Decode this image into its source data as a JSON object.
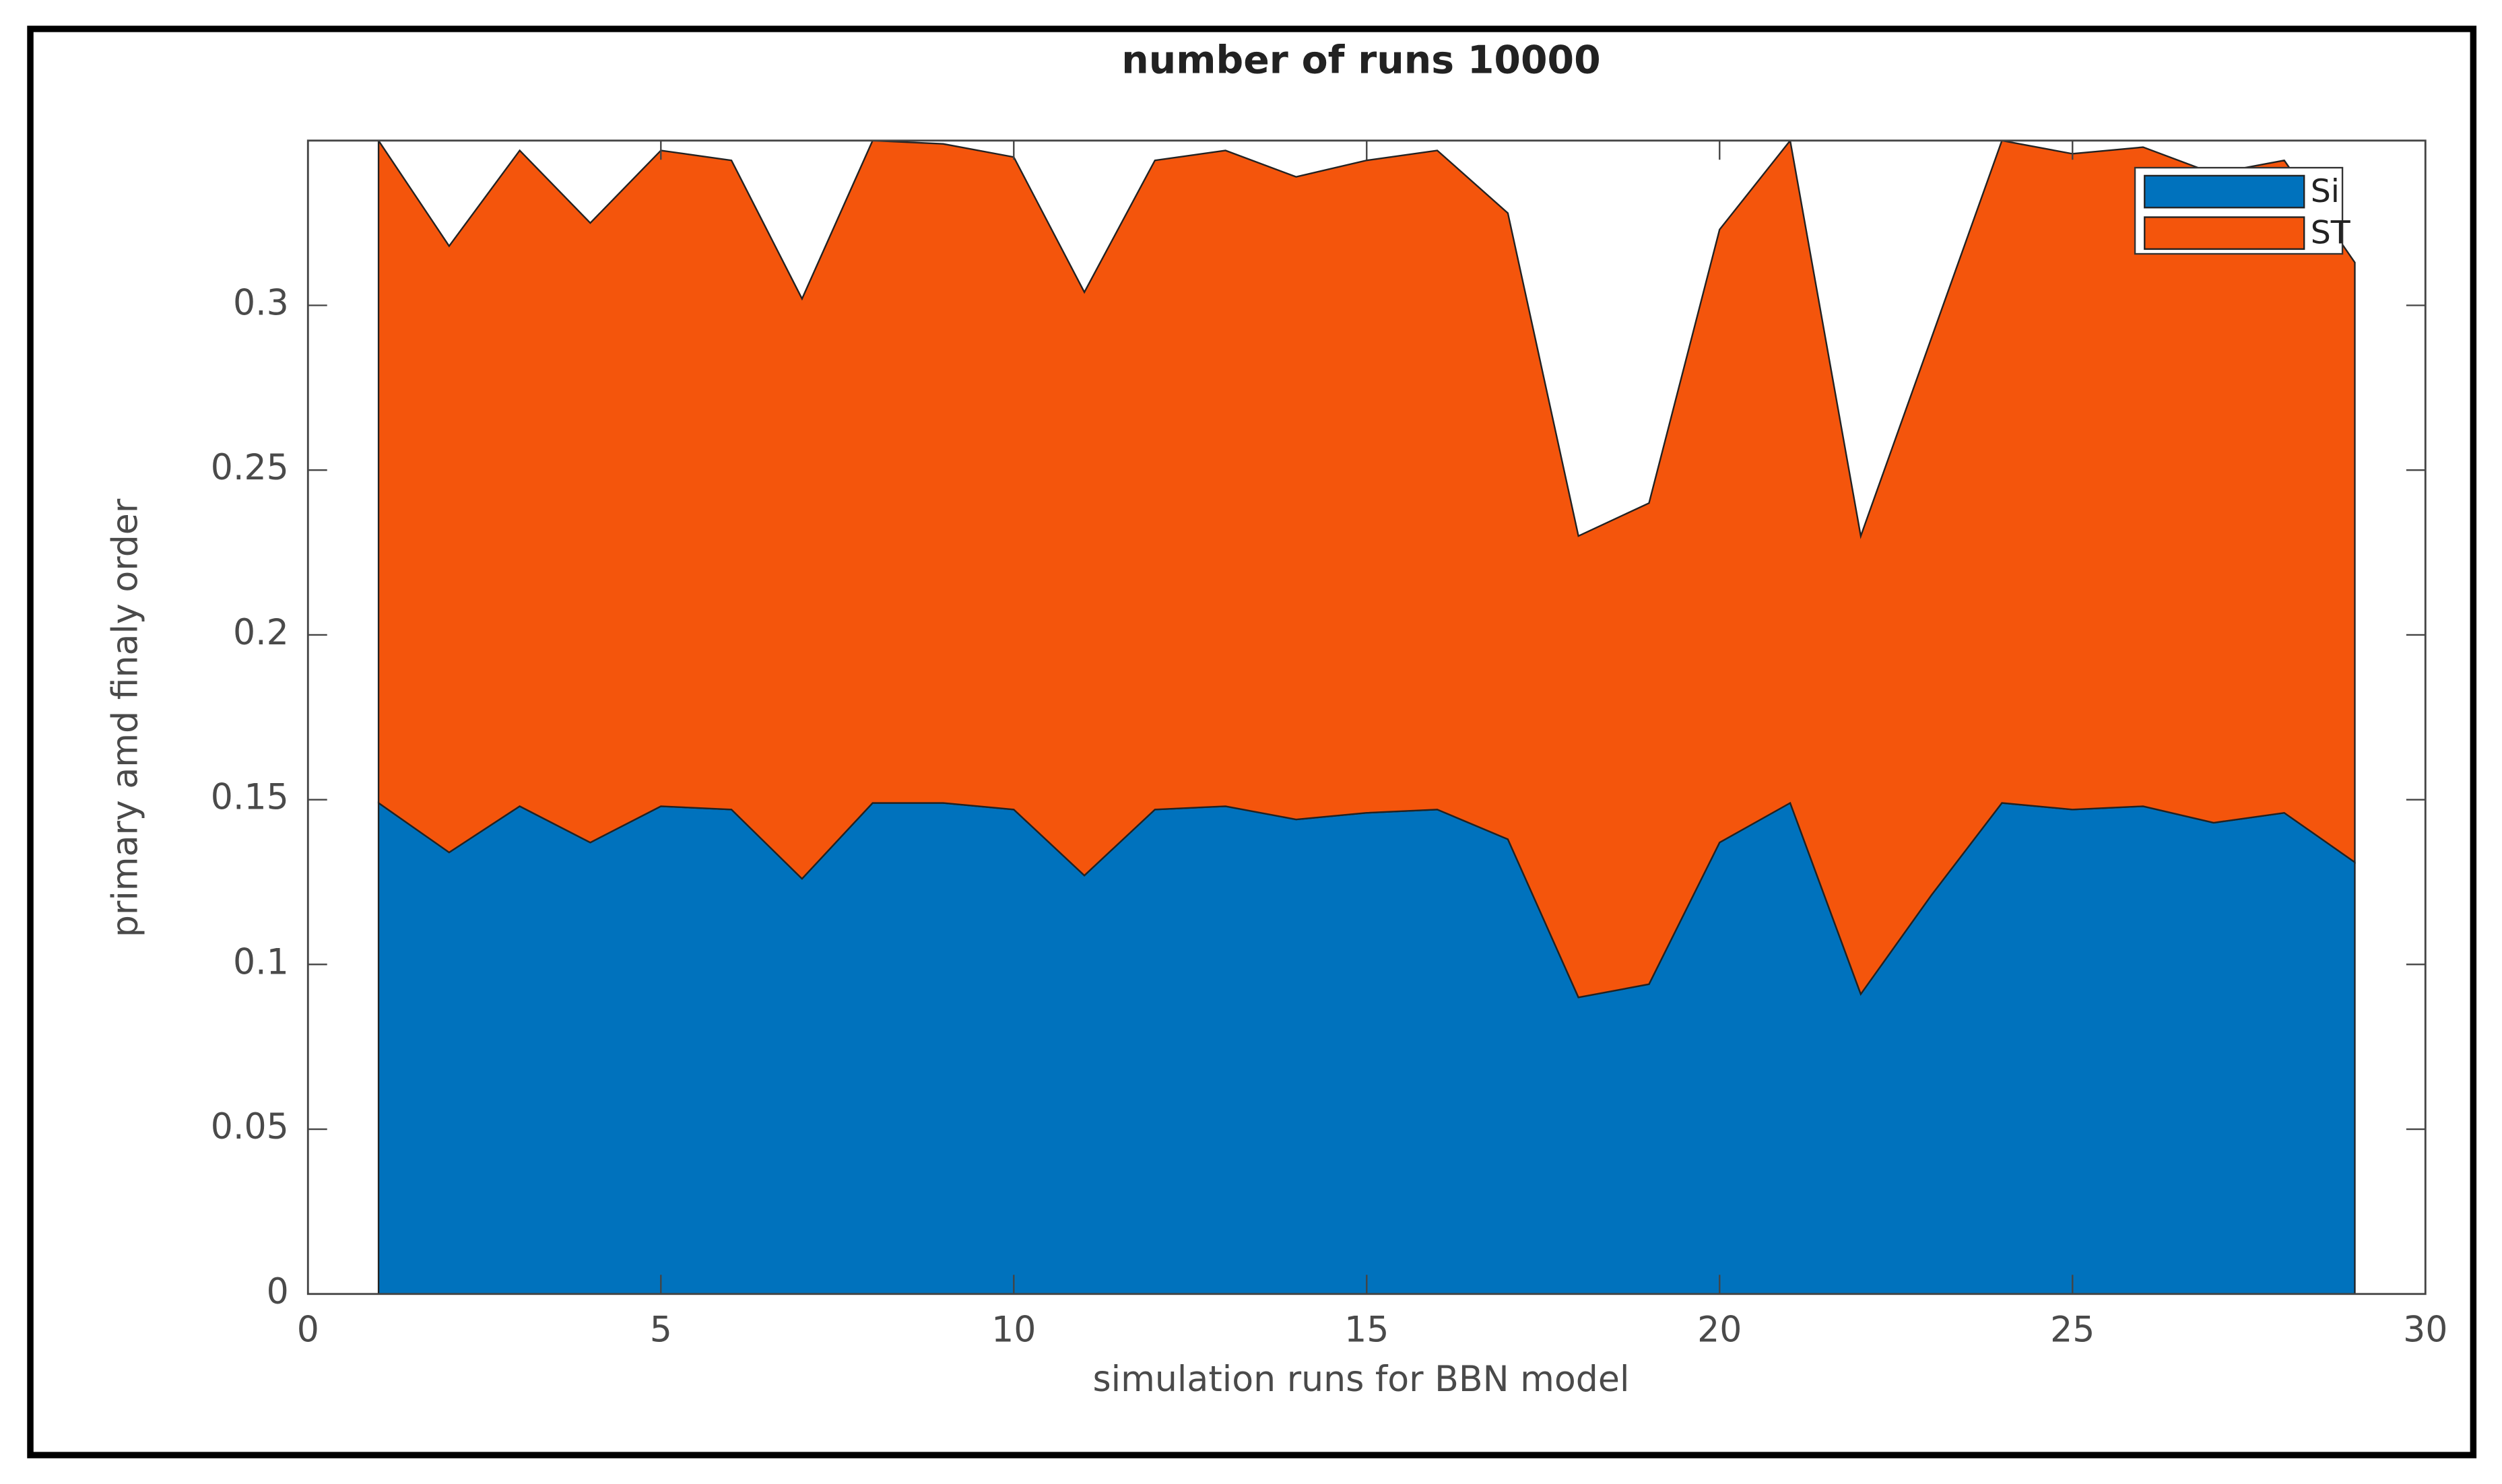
{
  "chart_data": {
    "type": "area",
    "stacked": true,
    "title": "number of runs 10000",
    "x_label": "simulation runs for BBN model",
    "y_label": "primary amd finaly order",
    "x": [
      1,
      2,
      3,
      4,
      5,
      6,
      7,
      8,
      9,
      10,
      11,
      12,
      13,
      14,
      15,
      16,
      17,
      18,
      19,
      20,
      21,
      22,
      23,
      24,
      25,
      26,
      27,
      28,
      29
    ],
    "series": [
      {
        "name": "Si",
        "color": "#0072bd",
        "values": [
          0.149,
          0.134,
          0.148,
          0.137,
          0.148,
          0.147,
          0.126,
          0.149,
          0.149,
          0.147,
          0.127,
          0.147,
          0.148,
          0.144,
          0.146,
          0.147,
          0.138,
          0.09,
          0.094,
          0.137,
          0.149,
          0.091,
          0.121,
          0.149,
          0.147,
          0.148,
          0.143,
          0.146,
          0.131
        ]
      },
      {
        "name": "ST",
        "color": "#f4550c",
        "values": [
          0.201,
          0.184,
          0.199,
          0.188,
          0.199,
          0.197,
          0.176,
          0.201,
          0.2,
          0.198,
          0.177,
          0.197,
          0.199,
          0.195,
          0.198,
          0.2,
          0.19,
          0.14,
          0.146,
          0.186,
          0.201,
          0.139,
          0.169,
          0.201,
          0.199,
          0.2,
          0.197,
          0.198,
          0.182
        ]
      }
    ],
    "xlim": [
      0,
      30
    ],
    "xticks": [
      0,
      5,
      10,
      15,
      20,
      25,
      30
    ],
    "ylim": [
      0,
      0.35
    ],
    "yticks": [
      0,
      0.05,
      0.1,
      0.15,
      0.2,
      0.25,
      0.3
    ],
    "legend": "upper right"
  }
}
